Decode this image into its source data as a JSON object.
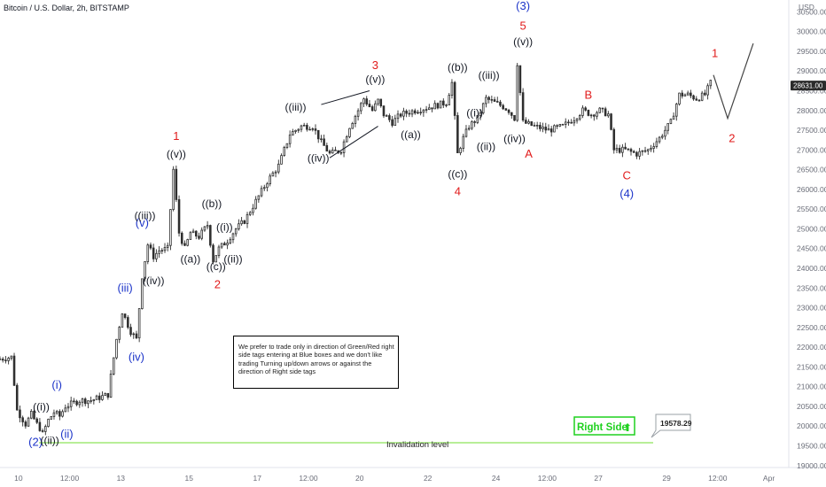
{
  "header": {
    "symbol": "Bitcoin / U.S. Dollar, 2h, BITSTAMP",
    "currency": "USD"
  },
  "colors": {
    "up": "#2f2f2f",
    "down": "#2f2f2f",
    "invalidation": "#8ee35a",
    "wave_black": "#131722",
    "wave_red": "#e11b1b",
    "wave_blue": "#1c34c9",
    "right_side": "#1fd11f"
  },
  "note": "We prefer to trade only in direction of Green/Red right side tags entering at Blue boxes and we don't like trading Turning up/down arrows or against the direction of Right side tags",
  "invalidation": {
    "label": "Invalidation level",
    "price_label": "19578.29",
    "price": 19578.29
  },
  "right_side": {
    "label": "Right Side",
    "arrow": "⬆"
  },
  "last_price": {
    "label": "28631.00",
    "value": 28631
  },
  "chart_data": {
    "type": "candlestick",
    "y_axis": {
      "ylim": [
        18950,
        30800
      ],
      "ticks": [
        30500,
        30000,
        29500,
        29000,
        28500,
        28000,
        27500,
        27000,
        26500,
        26000,
        25500,
        25000,
        24500,
        24000,
        23500,
        23000,
        22500,
        22000,
        21500,
        21000,
        20500,
        20000,
        19500,
        19000
      ],
      "tick_labels": [
        "30500.00",
        "30000.00",
        "29500.00",
        "29000.00",
        "28500.00",
        "28000.00",
        "27500.00",
        "27000.00",
        "26500.00",
        "26000.00",
        "25500.00",
        "25000.00",
        "24500.00",
        "24000.00",
        "23500.00",
        "23000.00",
        "22500.00",
        "22000.00",
        "21500.00",
        "21000.00",
        "20500.00",
        "20000.00",
        "19500.00",
        "19000.00"
      ]
    },
    "x_axis": {
      "unit": "hours since first bar",
      "xlim": [
        0,
        555
      ],
      "ticks": [
        {
          "t": 13,
          "label": "10"
        },
        {
          "t": 49,
          "label": "12:00"
        },
        {
          "t": 85,
          "label": "13"
        },
        {
          "t": 133,
          "label": "15"
        },
        {
          "t": 181,
          "label": "17"
        },
        {
          "t": 217,
          "label": "12:00"
        },
        {
          "t": 253,
          "label": "20"
        },
        {
          "t": 301,
          "label": "22"
        },
        {
          "t": 349,
          "label": "24"
        },
        {
          "t": 385,
          "label": "12:00"
        },
        {
          "t": 421,
          "label": "27"
        },
        {
          "t": 469,
          "label": "29"
        },
        {
          "t": 505,
          "label": "12:00"
        },
        {
          "t": 541,
          "label": "Apr"
        }
      ]
    },
    "price_path": [
      {
        "t": 0,
        "p": 21700
      },
      {
        "t": 8,
        "p": 21750
      },
      {
        "t": 12,
        "p": 20400
      },
      {
        "t": 18,
        "p": 20050
      },
      {
        "t": 22,
        "p": 20300
      },
      {
        "t": 26,
        "p": 20050
      },
      {
        "t": 28,
        "p": 19950
      },
      {
        "t": 30,
        "p": 19800
      },
      {
        "t": 34,
        "p": 20150
      },
      {
        "t": 38,
        "p": 20350
      },
      {
        "t": 42,
        "p": 20250
      },
      {
        "t": 46,
        "p": 20500
      },
      {
        "t": 56,
        "p": 20650
      },
      {
        "t": 64,
        "p": 20650
      },
      {
        "t": 76,
        "p": 20800
      },
      {
        "t": 82,
        "p": 22200
      },
      {
        "t": 86,
        "p": 22900
      },
      {
        "t": 92,
        "p": 22400
      },
      {
        "t": 96,
        "p": 22200
      },
      {
        "t": 100,
        "p": 23800
      },
      {
        "t": 104,
        "p": 24600
      },
      {
        "t": 108,
        "p": 24300
      },
      {
        "t": 112,
        "p": 24450
      },
      {
        "t": 118,
        "p": 24500
      },
      {
        "t": 122,
        "p": 26500
      },
      {
        "t": 126,
        "p": 24900
      },
      {
        "t": 130,
        "p": 24500
      },
      {
        "t": 134,
        "p": 24900
      },
      {
        "t": 140,
        "p": 24800
      },
      {
        "t": 146,
        "p": 25100
      },
      {
        "t": 150,
        "p": 24200
      },
      {
        "t": 154,
        "p": 24500
      },
      {
        "t": 160,
        "p": 24700
      },
      {
        "t": 166,
        "p": 25000
      },
      {
        "t": 172,
        "p": 25200
      },
      {
        "t": 180,
        "p": 25700
      },
      {
        "t": 188,
        "p": 26200
      },
      {
        "t": 196,
        "p": 26600
      },
      {
        "t": 204,
        "p": 27400
      },
      {
        "t": 212,
        "p": 27600
      },
      {
        "t": 220,
        "p": 27600
      },
      {
        "t": 226,
        "p": 27200
      },
      {
        "t": 232,
        "p": 26900
      },
      {
        "t": 240,
        "p": 27000
      },
      {
        "t": 246,
        "p": 27600
      },
      {
        "t": 252,
        "p": 28000
      },
      {
        "t": 256,
        "p": 28300
      },
      {
        "t": 262,
        "p": 28000
      },
      {
        "t": 266,
        "p": 28250
      },
      {
        "t": 270,
        "p": 27900
      },
      {
        "t": 276,
        "p": 27700
      },
      {
        "t": 282,
        "p": 27900
      },
      {
        "t": 292,
        "p": 28000
      },
      {
        "t": 304,
        "p": 28100
      },
      {
        "t": 314,
        "p": 28200
      },
      {
        "t": 318,
        "p": 28700
      },
      {
        "t": 322,
        "p": 26900
      },
      {
        "t": 326,
        "p": 27300
      },
      {
        "t": 330,
        "p": 27600
      },
      {
        "t": 336,
        "p": 27800
      },
      {
        "t": 342,
        "p": 28300
      },
      {
        "t": 348,
        "p": 28200
      },
      {
        "t": 354,
        "p": 28100
      },
      {
        "t": 358,
        "p": 28000
      },
      {
        "t": 362,
        "p": 27800
      },
      {
        "t": 364,
        "p": 29200
      },
      {
        "t": 368,
        "p": 27700
      },
      {
        "t": 376,
        "p": 27600
      },
      {
        "t": 386,
        "p": 27500
      },
      {
        "t": 396,
        "p": 27600
      },
      {
        "t": 404,
        "p": 27800
      },
      {
        "t": 410,
        "p": 28000
      },
      {
        "t": 416,
        "p": 27900
      },
      {
        "t": 422,
        "p": 28000
      },
      {
        "t": 428,
        "p": 27900
      },
      {
        "t": 432,
        "p": 27000
      },
      {
        "t": 440,
        "p": 27000
      },
      {
        "t": 448,
        "p": 26900
      },
      {
        "t": 456,
        "p": 27000
      },
      {
        "t": 464,
        "p": 27300
      },
      {
        "t": 472,
        "p": 27700
      },
      {
        "t": 478,
        "p": 28400
      },
      {
        "t": 484,
        "p": 28400
      },
      {
        "t": 490,
        "p": 28300
      },
      {
        "t": 496,
        "p": 28400
      },
      {
        "t": 500,
        "p": 28700
      }
    ],
    "projection": [
      {
        "t": 502,
        "p": 28900
      },
      {
        "t": 512,
        "p": 27800
      },
      {
        "t": 530,
        "p": 29700
      }
    ],
    "triangle_lines": [
      {
        "from": {
          "t": 226,
          "p": 28150
        },
        "to": {
          "t": 260,
          "p": 28500
        }
      },
      {
        "from": {
          "t": 232,
          "p": 26800
        },
        "to": {
          "t": 266,
          "p": 27600
        }
      }
    ],
    "wave_labels": [
      {
        "text": "(2)",
        "t": 25,
        "p": 19500,
        "color": "blue"
      },
      {
        "text": "((ii))",
        "t": 35,
        "p": 19550,
        "color": "black"
      },
      {
        "text": "(ii)",
        "t": 47,
        "p": 19700,
        "color": "blue"
      },
      {
        "text": "((i))",
        "t": 29,
        "p": 20400,
        "color": "black"
      },
      {
        "text": "(i)",
        "t": 40,
        "p": 20950,
        "color": "blue"
      },
      {
        "text": "(iii)",
        "t": 88,
        "p": 23400,
        "color": "blue"
      },
      {
        "text": "(iv)",
        "t": 96,
        "p": 21650,
        "color": "blue"
      },
      {
        "text": "(v)",
        "t": 100,
        "p": 25050,
        "color": "blue"
      },
      {
        "text": "((iii))",
        "t": 102,
        "p": 25250,
        "color": "black"
      },
      {
        "text": "((iv))",
        "t": 108,
        "p": 23600,
        "color": "black"
      },
      {
        "text": "1",
        "t": 124,
        "p": 27250,
        "color": "red"
      },
      {
        "text": "((v))",
        "t": 124,
        "p": 26800,
        "color": "black"
      },
      {
        "text": "((a))",
        "t": 134,
        "p": 24150,
        "color": "black"
      },
      {
        "text": "((b))",
        "t": 149,
        "p": 25550,
        "color": "black"
      },
      {
        "text": "((i))",
        "t": 158,
        "p": 24950,
        "color": "black"
      },
      {
        "text": "((ii))",
        "t": 164,
        "p": 24150,
        "color": "black"
      },
      {
        "text": "((c))",
        "t": 152,
        "p": 23950,
        "color": "black"
      },
      {
        "text": "2",
        "t": 153,
        "p": 23500,
        "color": "red"
      },
      {
        "text": "((iii))",
        "t": 208,
        "p": 28000,
        "color": "black"
      },
      {
        "text": "((iv))",
        "t": 224,
        "p": 26700,
        "color": "black"
      },
      {
        "text": "3",
        "t": 264,
        "p": 29050,
        "color": "red"
      },
      {
        "text": "((v))",
        "t": 264,
        "p": 28700,
        "color": "black"
      },
      {
        "text": "((a))",
        "t": 289,
        "p": 27300,
        "color": "black"
      },
      {
        "text": "((b))",
        "t": 322,
        "p": 29000,
        "color": "black"
      },
      {
        "text": "((c))",
        "t": 322,
        "p": 26300,
        "color": "black"
      },
      {
        "text": "4",
        "t": 322,
        "p": 25850,
        "color": "red"
      },
      {
        "text": "((iii))",
        "t": 344,
        "p": 28800,
        "color": "black"
      },
      {
        "text": "((i))",
        "t": 334,
        "p": 27850,
        "color": "black"
      },
      {
        "text": "((ii))",
        "t": 342,
        "p": 27000,
        "color": "black"
      },
      {
        "text": "((iv))",
        "t": 362,
        "p": 27200,
        "color": "black"
      },
      {
        "text": "(3)",
        "t": 368,
        "p": 30550,
        "color": "blue"
      },
      {
        "text": "5",
        "t": 368,
        "p": 30050,
        "color": "red"
      },
      {
        "text": "((v))",
        "t": 368,
        "p": 29650,
        "color": "black"
      },
      {
        "text": "A",
        "t": 372,
        "p": 26800,
        "color": "red"
      },
      {
        "text": "B",
        "t": 414,
        "p": 28300,
        "color": "red"
      },
      {
        "text": "C",
        "t": 441,
        "p": 26250,
        "color": "red"
      },
      {
        "text": "(4)",
        "t": 441,
        "p": 25800,
        "color": "blue"
      },
      {
        "text": "1",
        "t": 503,
        "p": 29350,
        "color": "red"
      },
      {
        "text": "2",
        "t": 515,
        "p": 27200,
        "color": "red"
      }
    ]
  }
}
